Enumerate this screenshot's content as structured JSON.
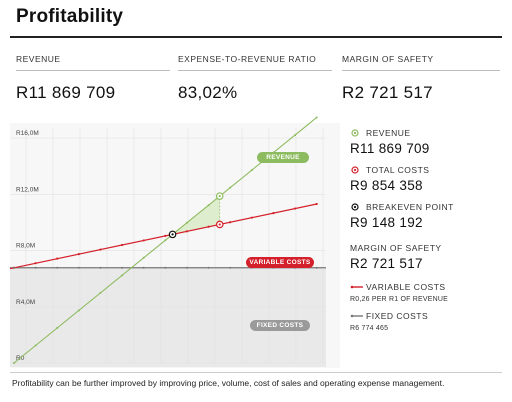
{
  "page": {
    "title": "Profitability",
    "footer": "Profitability can be further improved by improving price, volume, cost of sales and operating expense management."
  },
  "kpis": [
    {
      "label": "REVENUE",
      "value": "R11 869 709"
    },
    {
      "label": "EXPENSE-TO-REVENUE RATIO",
      "value": "83,02%"
    },
    {
      "label": "MARGIN OF SAFETY",
      "value": "R2 721 517"
    }
  ],
  "legend": {
    "revenue": {
      "label": "REVENUE",
      "value": "R11 869 709"
    },
    "total_costs": {
      "label": "TOTAL COSTS",
      "value": "R9 854 358"
    },
    "breakeven": {
      "label": "BREAKEVEN POINT",
      "value": "R9 148 192"
    },
    "margin": {
      "label": "MARGIN OF SAFETY",
      "value": "R2 721 517"
    },
    "variable_costs": {
      "label": "VARIABLE COSTS",
      "sub": "R0,26 PER R1 OF REVENUE"
    },
    "fixed_costs": {
      "label": "FIXED COSTS",
      "sub": "R6 774 465"
    }
  },
  "colors": {
    "revenue": "#8dbb5f",
    "costs": "#d4202a",
    "fixed": "#777777",
    "margin_fill": "#dfedcf",
    "fixed_fill": "#e9e9e9"
  },
  "chart_data": {
    "type": "line",
    "xlim": [
      0,
      18000000
    ],
    "ylim": [
      0,
      17000000
    ],
    "yticks": [
      0,
      4000000,
      8000000,
      12000000,
      16000000
    ],
    "ytick_labels": [
      "R0",
      "R4,0M",
      "R8,0M",
      "R12,0M",
      "R16,0M"
    ],
    "series": [
      {
        "name": "REVENUE",
        "x": [
          0,
          17500000
        ],
        "y": [
          0,
          17500000
        ]
      },
      {
        "name": "VARIABLE COSTS",
        "x": [
          0,
          17500000
        ],
        "y": [
          6774465,
          11320000
        ]
      },
      {
        "name": "FIXED COSTS",
        "x": [
          0,
          17500000
        ],
        "y": [
          6774465,
          6774465
        ]
      }
    ],
    "points": {
      "revenue": {
        "x": 11869709,
        "y": 11869709
      },
      "total_costs": {
        "x": 11869709,
        "y": 9854358
      },
      "breakeven": {
        "x": 9148192,
        "y": 9148192
      }
    },
    "annotations": {
      "revenue": "REVENUE",
      "variable_costs": "VARIABLE COSTS",
      "fixed_costs": "FIXED COSTS"
    }
  }
}
